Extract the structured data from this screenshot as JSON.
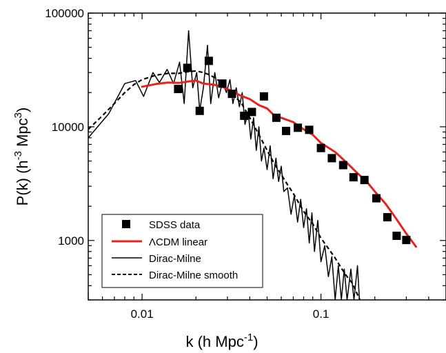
{
  "chart_data": {
    "type": "scatter",
    "xscale": "log",
    "yscale": "log",
    "xlim": [
      0.005,
      0.5
    ],
    "ylim": [
      300,
      100000
    ],
    "xlabel": "k (h Mpc",
    "xlabel_sup": "-1",
    "xlabel_end": ")",
    "ylabel": "P(k) (h",
    "ylabel_sup1": "-3",
    "ylabel_mid": " Mpc",
    "ylabel_sup2": "3",
    "ylabel_end": ")",
    "x_ticks": [
      {
        "value": 0.01,
        "label": "0.01"
      },
      {
        "value": 0.1,
        "label": "0.1"
      }
    ],
    "y_ticks": [
      {
        "value": 1000,
        "label": "1000"
      },
      {
        "value": 10000,
        "label": "10000"
      },
      {
        "value": 100000,
        "label": "100000"
      }
    ],
    "legend_position": "bottom-left",
    "legend": [
      {
        "key": "sdss",
        "label": "SDSS data"
      },
      {
        "key": "lcdm",
        "label": "ΛCDM linear"
      },
      {
        "key": "dm",
        "label": "Dirac-Milne"
      },
      {
        "key": "dms",
        "label": "Dirac-Milne smooth"
      }
    ],
    "series": [
      {
        "key": "sdss",
        "name": "SDSS data",
        "style": "square-marker",
        "color": "#000000",
        "points": [
          [
            0.0159,
            21500
          ],
          [
            0.0179,
            33000
          ],
          [
            0.021,
            13800
          ],
          [
            0.0236,
            38000
          ],
          [
            0.0281,
            24000
          ],
          [
            0.0318,
            19500
          ],
          [
            0.0372,
            12500
          ],
          [
            0.0411,
            13500
          ],
          [
            0.048,
            18500
          ],
          [
            0.0563,
            12000
          ],
          [
            0.0638,
            9200
          ],
          [
            0.0743,
            9800
          ],
          [
            0.0859,
            9400
          ],
          [
            0.1,
            6500
          ],
          [
            0.115,
            5300
          ],
          [
            0.133,
            4600
          ],
          [
            0.152,
            3600
          ],
          [
            0.175,
            3400
          ],
          [
            0.204,
            2350
          ],
          [
            0.235,
            1600
          ],
          [
            0.265,
            1100
          ],
          [
            0.3,
            1010
          ]
        ]
      },
      {
        "key": "lcdm",
        "name": "ΛCDM linear",
        "style": "solid",
        "color": "#e8211d",
        "points": [
          [
            0.01,
            22500
          ],
          [
            0.012,
            23800
          ],
          [
            0.014,
            24500
          ],
          [
            0.016,
            24300
          ],
          [
            0.018,
            25000
          ],
          [
            0.02,
            25500
          ],
          [
            0.022,
            24000
          ],
          [
            0.025,
            23500
          ],
          [
            0.028,
            22500
          ],
          [
            0.03,
            21500
          ],
          [
            0.035,
            19000
          ],
          [
            0.04,
            17500
          ],
          [
            0.045,
            15500
          ],
          [
            0.05,
            14500
          ],
          [
            0.055,
            12500
          ],
          [
            0.06,
            12000
          ],
          [
            0.07,
            11000
          ],
          [
            0.08,
            9500
          ],
          [
            0.09,
            8500
          ],
          [
            0.1,
            7200
          ],
          [
            0.12,
            6000
          ],
          [
            0.14,
            4800
          ],
          [
            0.16,
            3900
          ],
          [
            0.18,
            3300
          ],
          [
            0.2,
            2700
          ],
          [
            0.23,
            2100
          ],
          [
            0.26,
            1600
          ],
          [
            0.3,
            1150
          ],
          [
            0.34,
            880
          ]
        ]
      },
      {
        "key": "dm",
        "name": "Dirac-Milne",
        "style": "solid-thin",
        "color": "#000000",
        "points": [
          [
            0.005,
            8000
          ],
          [
            0.0065,
            13000
          ],
          [
            0.008,
            24000
          ],
          [
            0.0092,
            25500
          ],
          [
            0.0102,
            18500
          ],
          [
            0.0115,
            30000
          ],
          [
            0.0125,
            24500
          ],
          [
            0.0138,
            32000
          ],
          [
            0.015,
            24000
          ],
          [
            0.0162,
            37000
          ],
          [
            0.0172,
            16000
          ],
          [
            0.0182,
            70000
          ],
          [
            0.0192,
            22000
          ],
          [
            0.0202,
            30000
          ],
          [
            0.021,
            13800
          ],
          [
            0.022,
            22000
          ],
          [
            0.0232,
            52000
          ],
          [
            0.0242,
            16000
          ],
          [
            0.0255,
            30000
          ],
          [
            0.0268,
            18000
          ],
          [
            0.0282,
            25000
          ],
          [
            0.0296,
            20000
          ],
          [
            0.031,
            26000
          ],
          [
            0.0322,
            16000
          ],
          [
            0.0336,
            22000
          ],
          [
            0.035,
            15000
          ],
          [
            0.0363,
            20000
          ],
          [
            0.0376,
            10500
          ],
          [
            0.0392,
            13500
          ],
          [
            0.0405,
            7800
          ],
          [
            0.042,
            12000
          ],
          [
            0.0435,
            6200
          ],
          [
            0.045,
            10000
          ],
          [
            0.0465,
            5000
          ],
          [
            0.048,
            6500
          ],
          [
            0.05,
            4200
          ],
          [
            0.052,
            6800
          ],
          [
            0.054,
            3500
          ],
          [
            0.056,
            5300
          ],
          [
            0.058,
            3300
          ],
          [
            0.06,
            4500
          ],
          [
            0.062,
            2700
          ],
          [
            0.065,
            2900
          ],
          [
            0.068,
            1700
          ],
          [
            0.071,
            2500
          ],
          [
            0.074,
            1450
          ],
          [
            0.077,
            2300
          ],
          [
            0.08,
            1300
          ],
          [
            0.083,
            1900
          ],
          [
            0.086,
            950
          ],
          [
            0.089,
            1750
          ],
          [
            0.092,
            800
          ],
          [
            0.096,
            1500
          ],
          [
            0.1,
            650
          ],
          [
            0.105,
            900
          ],
          [
            0.11,
            480
          ],
          [
            0.115,
            720
          ],
          [
            0.12,
            300
          ],
          [
            0.125,
            600
          ],
          [
            0.13,
            300
          ],
          [
            0.135,
            560
          ],
          [
            0.14,
            300
          ],
          [
            0.147,
            560
          ],
          [
            0.153,
            300
          ],
          [
            0.16,
            600
          ],
          [
            0.164,
            300
          ]
        ]
      },
      {
        "key": "dms",
        "name": "Dirac-Milne smooth",
        "style": "dashed",
        "color": "#000000",
        "points": [
          [
            0.005,
            9500
          ],
          [
            0.006,
            12500
          ],
          [
            0.007,
            16000
          ],
          [
            0.008,
            20000
          ],
          [
            0.009,
            23500
          ],
          [
            0.01,
            26000
          ],
          [
            0.012,
            28500
          ],
          [
            0.014,
            29500
          ],
          [
            0.016,
            29500
          ],
          [
            0.018,
            30500
          ],
          [
            0.02,
            31000
          ],
          [
            0.022,
            30000
          ],
          [
            0.024,
            28500
          ],
          [
            0.026,
            26500
          ],
          [
            0.028,
            24000
          ],
          [
            0.03,
            21500
          ],
          [
            0.033,
            18500
          ],
          [
            0.036,
            16000
          ],
          [
            0.04,
            12000
          ],
          [
            0.045,
            8500
          ],
          [
            0.05,
            6200
          ],
          [
            0.055,
            4700
          ],
          [
            0.06,
            3800
          ],
          [
            0.065,
            3100
          ],
          [
            0.07,
            2600
          ],
          [
            0.075,
            2150
          ],
          [
            0.08,
            1800
          ],
          [
            0.09,
            1400
          ],
          [
            0.1,
            1050
          ],
          [
            0.11,
            850
          ],
          [
            0.12,
            700
          ],
          [
            0.13,
            570
          ],
          [
            0.14,
            480
          ],
          [
            0.15,
            420
          ],
          [
            0.165,
            300
          ]
        ]
      }
    ]
  }
}
